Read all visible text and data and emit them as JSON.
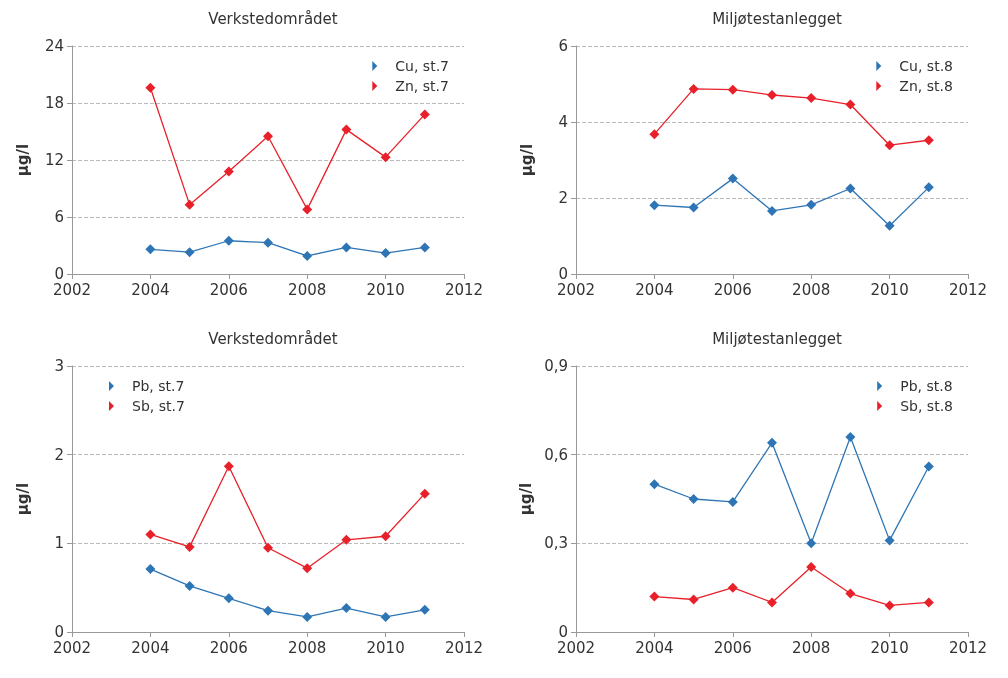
{
  "chart_data": [
    {
      "type": "line",
      "title": "Verkstedområdet",
      "ylabel": "µg/l",
      "x": [
        2004,
        2005,
        2006,
        2007,
        2008,
        2009,
        2010,
        2011
      ],
      "xlim": [
        2002,
        2012
      ],
      "xticks": [
        2002,
        2004,
        2006,
        2008,
        2010,
        2012
      ],
      "ylim": [
        0,
        24
      ],
      "yticks": [
        0,
        6,
        12,
        18,
        24
      ],
      "grid": "y",
      "legend": "top right",
      "marker": "diamond",
      "line_style": "solid",
      "series": [
        {
          "name": "Cu, st.7",
          "color": "#2e75b6",
          "values": [
            2.6,
            2.3,
            3.5,
            3.3,
            1.9,
            2.8,
            2.2,
            2.8
          ]
        },
        {
          "name": "Zn, st.7",
          "color": "#e8202a",
          "values": [
            19.6,
            7.3,
            10.8,
            14.5,
            6.8,
            15.2,
            12.3,
            16.8
          ]
        }
      ]
    },
    {
      "type": "line",
      "title": "Miljøtestanlegget",
      "ylabel": "µg/l",
      "x": [
        2004,
        2005,
        2006,
        2007,
        2008,
        2009,
        2010,
        2011
      ],
      "xlim": [
        2002,
        2012
      ],
      "xticks": [
        2002,
        2004,
        2006,
        2008,
        2010,
        2012
      ],
      "ylim": [
        0,
        6
      ],
      "yticks": [
        0,
        2,
        4,
        6
      ],
      "grid": "y",
      "legend": "top right",
      "marker": "diamond",
      "line_style": "solid",
      "series": [
        {
          "name": "Cu, st.8",
          "color": "#2e75b6",
          "values": [
            1.81,
            1.75,
            2.51,
            1.66,
            1.82,
            2.25,
            1.27,
            2.28
          ]
        },
        {
          "name": "Zn, st.8",
          "color": "#e8202a",
          "values": [
            3.68,
            4.87,
            4.85,
            4.71,
            4.63,
            4.46,
            3.39,
            3.52
          ]
        }
      ]
    },
    {
      "type": "line",
      "title": "Verkstedområdet",
      "ylabel": "µg/l",
      "x": [
        2004,
        2005,
        2006,
        2007,
        2008,
        2009,
        2010,
        2011
      ],
      "xlim": [
        2002,
        2012
      ],
      "xticks": [
        2002,
        2004,
        2006,
        2008,
        2010,
        2012
      ],
      "ylim": [
        0,
        3
      ],
      "yticks": [
        0,
        1,
        2,
        3
      ],
      "grid": "y",
      "legend": "top left",
      "marker": "diamond",
      "line_style": "solid",
      "series": [
        {
          "name": "Pb, st.7",
          "color": "#2e75b6",
          "values": [
            0.71,
            0.52,
            0.38,
            0.24,
            0.17,
            0.27,
            0.17,
            0.25
          ]
        },
        {
          "name": "Sb, st.7",
          "color": "#e8202a",
          "values": [
            1.1,
            0.96,
            1.87,
            0.95,
            0.72,
            1.04,
            1.08,
            1.56
          ]
        }
      ]
    },
    {
      "type": "line",
      "title": "Miljøtestanlegget",
      "ylabel": "µg/l",
      "x": [
        2004,
        2005,
        2006,
        2007,
        2008,
        2009,
        2010,
        2011
      ],
      "xlim": [
        2002,
        2012
      ],
      "xticks": [
        2002,
        2004,
        2006,
        2008,
        2010,
        2012
      ],
      "ylim": [
        0,
        0.9
      ],
      "yticks": [
        0,
        {
          "value": 0.3,
          "label": "0,3"
        },
        {
          "value": 0.6,
          "label": "0,6"
        },
        {
          "value": 0.9,
          "label": "0,9"
        }
      ],
      "grid": "y",
      "legend": "top right",
      "marker": "diamond",
      "line_style": "solid",
      "series": [
        {
          "name": "Pb, st.8",
          "color": "#2e75b6",
          "values": [
            0.5,
            0.45,
            0.44,
            0.64,
            0.3,
            0.66,
            0.31,
            0.56
          ]
        },
        {
          "name": "Sb, st.8",
          "color": "#e8202a",
          "values": [
            0.12,
            0.11,
            0.15,
            0.1,
            0.22,
            0.13,
            0.09,
            0.1
          ]
        }
      ]
    }
  ]
}
